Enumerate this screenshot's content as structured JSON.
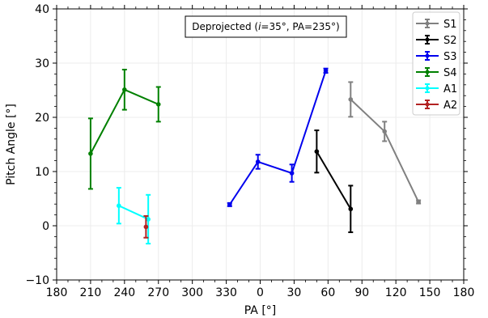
{
  "chart_data": {
    "type": "line",
    "xlabel": "PA [°]",
    "ylabel": "Pitch Angle [°]",
    "ylim": [
      -10,
      40
    ],
    "yticks": [
      -10,
      0,
      10,
      20,
      30,
      40
    ],
    "xticks_positions": [
      180,
      210,
      240,
      270,
      300,
      330,
      360,
      390,
      420,
      450,
      480,
      510,
      540
    ],
    "xticks_labels": [
      "180",
      "210",
      "240",
      "270",
      "300",
      "330",
      "0",
      "30",
      "60",
      "90",
      "120",
      "150",
      "180"
    ],
    "xlim_unwrapped": [
      180,
      540
    ],
    "annotation": {
      "prefix": "Deprojected (",
      "italic": "i",
      "suffix": "=35°, PA=235°)"
    },
    "legend_position": "top-right",
    "grid": true,
    "series": [
      {
        "name": "S1",
        "color": "#808080",
        "x": [
          440,
          470,
          500
        ],
        "y": [
          23.3,
          17.4,
          4.4
        ],
        "err": [
          3.2,
          1.8,
          0.3
        ]
      },
      {
        "name": "S2",
        "color": "#000000",
        "x": [
          410,
          440
        ],
        "y": [
          13.7,
          3.1
        ],
        "err": [
          3.9,
          4.3
        ]
      },
      {
        "name": "S3",
        "color": "#0000ee",
        "x": [
          333,
          358,
          388,
          418
        ],
        "y": [
          3.9,
          11.8,
          9.7,
          28.6
        ],
        "err": [
          0.3,
          1.3,
          1.6,
          0.4
        ]
      },
      {
        "name": "S4",
        "color": "#008000",
        "x": [
          210,
          240,
          270
        ],
        "y": [
          13.3,
          25.1,
          22.4
        ],
        "err": [
          6.5,
          3.7,
          3.2
        ]
      },
      {
        "name": "A1",
        "color": "#00ffff",
        "x": [
          235,
          261
        ],
        "y": [
          3.7,
          1.2
        ],
        "err": [
          3.3,
          4.5
        ]
      },
      {
        "name": "A2",
        "color": "#b22222",
        "x": [
          259
        ],
        "y": [
          -0.2
        ],
        "err": [
          2.0
        ]
      }
    ]
  }
}
